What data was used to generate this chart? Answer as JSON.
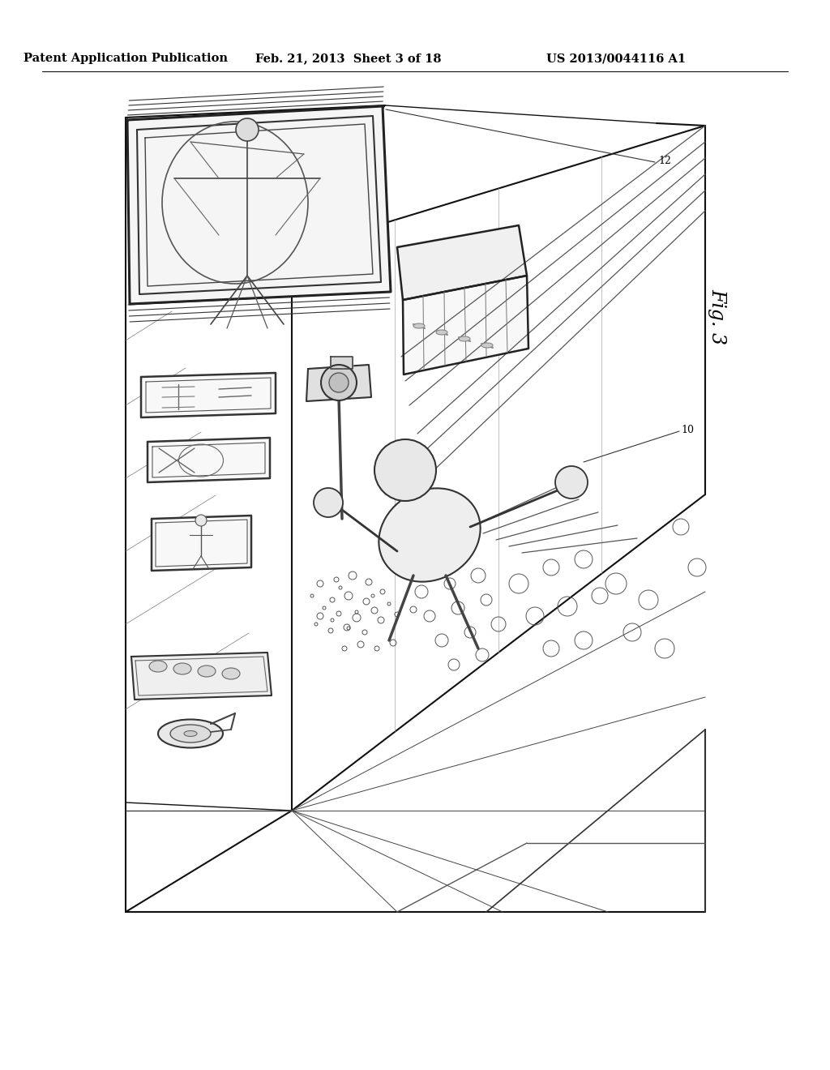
{
  "background_color": "#ffffff",
  "header_left": "Patent Application Publication",
  "header_center": "Feb. 21, 2013  Sheet 3 of 18",
  "header_right": "US 2013/0044116 A1",
  "fig_label": "Fig. 3",
  "ref_10": "10",
  "ref_12": "12"
}
